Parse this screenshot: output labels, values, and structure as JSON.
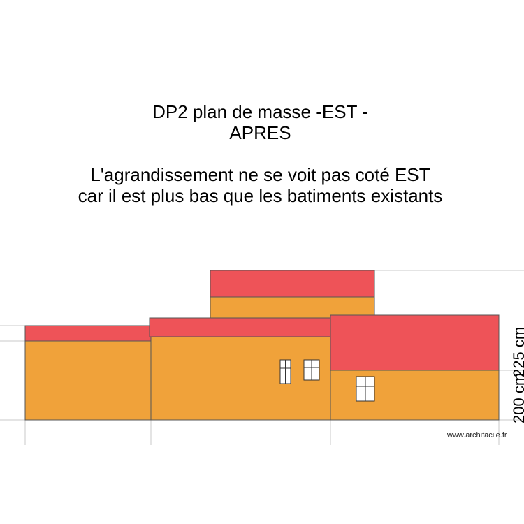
{
  "title": {
    "line1": "DP2 plan de masse -EST -",
    "line2": "APRES",
    "line3": "L'agrandissement ne se voit pas coté EST",
    "line4": "car il est plus bas que les batiments existants"
  },
  "dimensions": {
    "label_200": "200 cm",
    "label_225": "225 cm"
  },
  "watermark": "www.archifacile.fr",
  "colors": {
    "wall": "#f0a23a",
    "roof": "#ee5358",
    "outline": "#555555",
    "guide": "#c8c8c8",
    "window": "#ffffff"
  }
}
